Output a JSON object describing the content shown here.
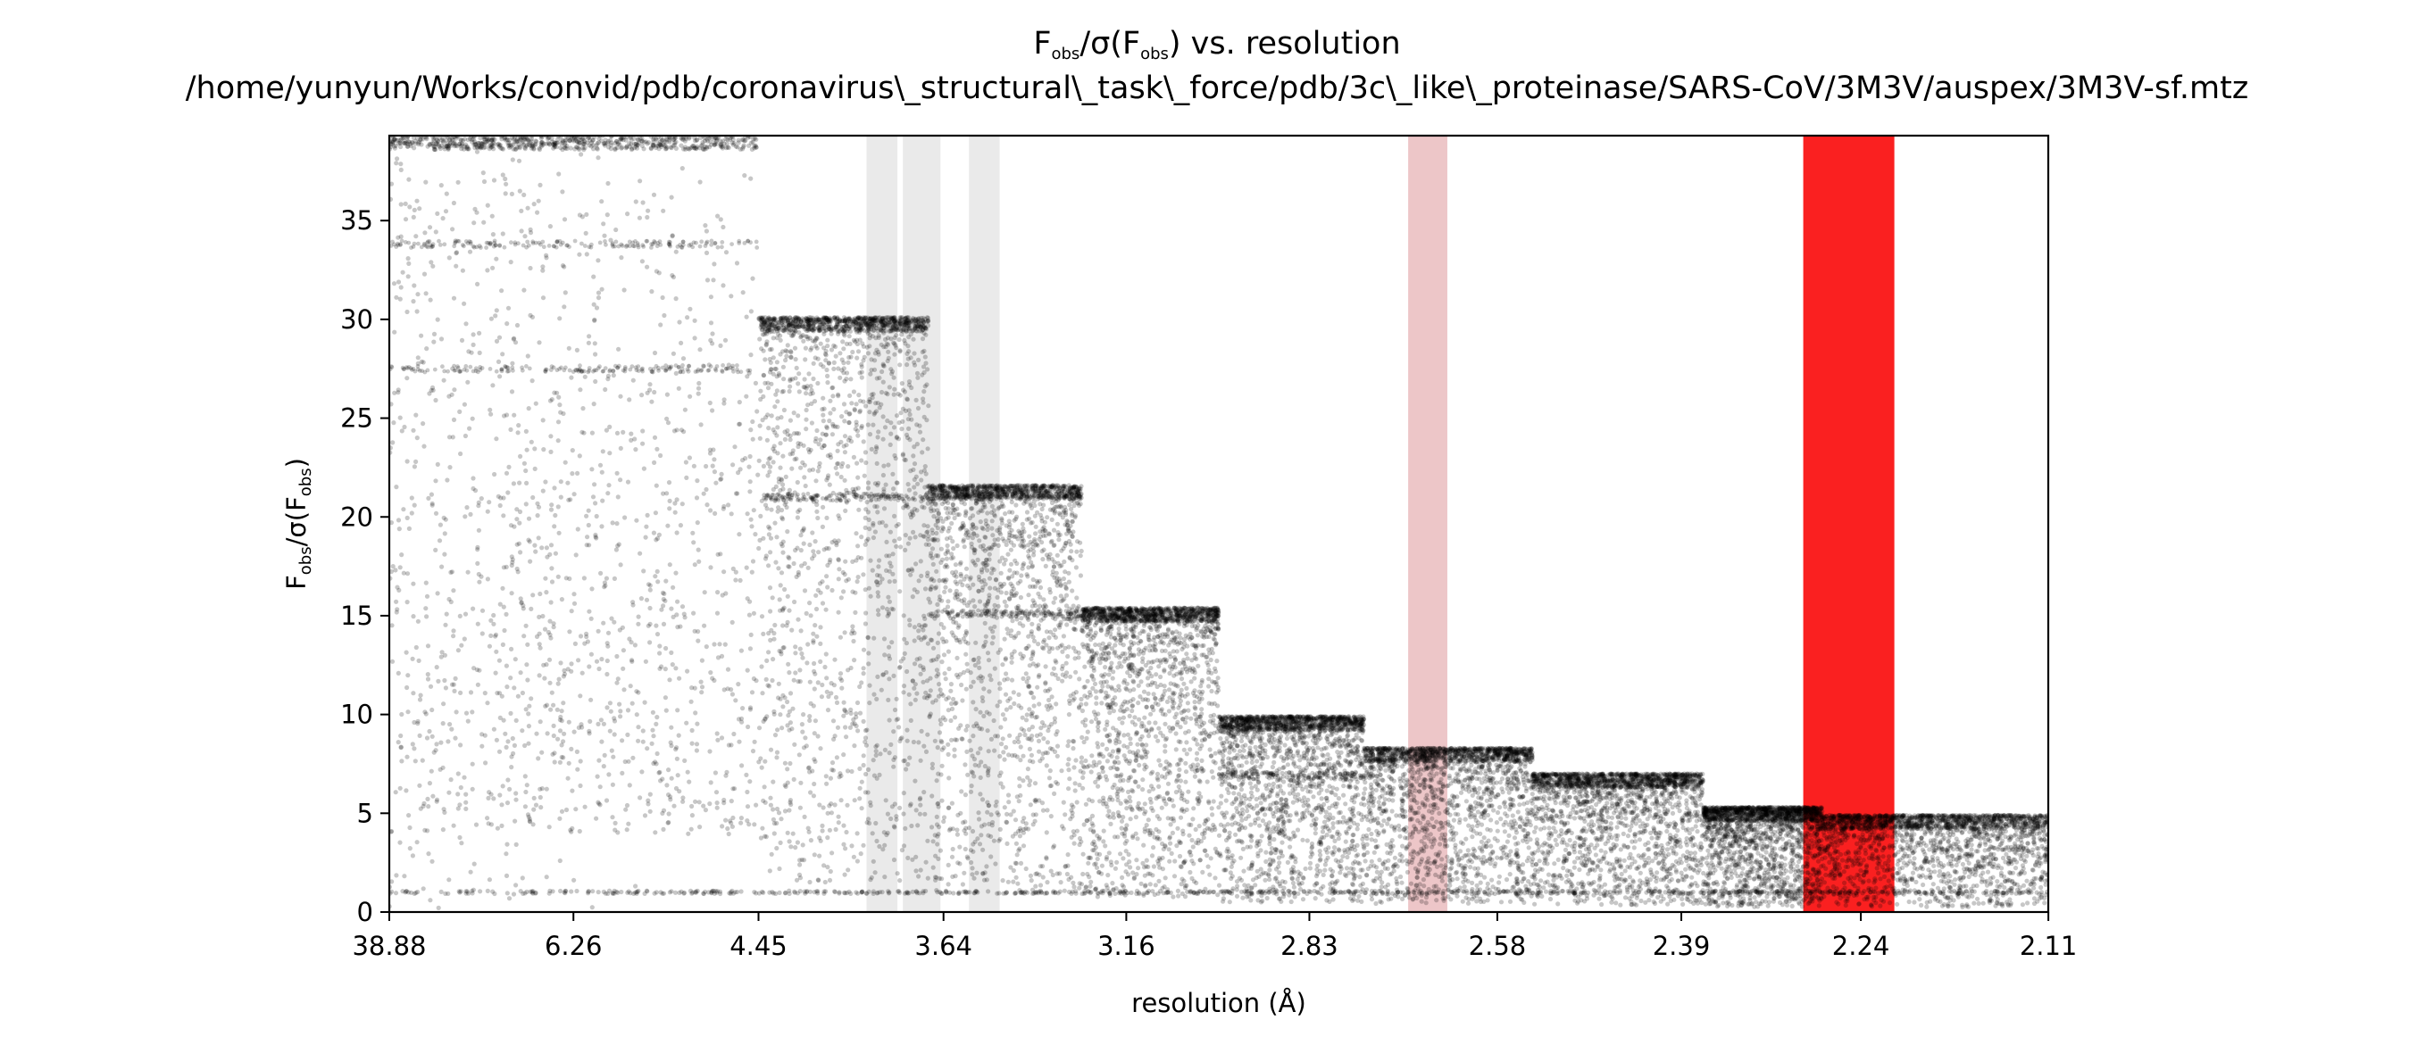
{
  "chart_data": {
    "type": "scatter",
    "title": "Fobs/σ(Fobs) vs. resolution",
    "title_parts": {
      "main": "F",
      "sub": "obs",
      "mid": "/σ(F",
      "sub2": "obs",
      "end": ") vs. resolution"
    },
    "subtitle": "/home/yunyun/Works/convid/pdb/coronavirus\\_structural\\_task\\_force/pdb/3c\\_like\\_proteinase/SARS-CoV/3M3V/auspex/3M3V-sf.mtz",
    "xlabel": "resolution (Å)",
    "ylabel": "Fobs/σ(Fobs)",
    "ylabel_parts": {
      "main": "F",
      "sub": "obs",
      "mid": "/σ(F",
      "sub2": "obs",
      "end": ")"
    },
    "x_tick_labels": [
      "38.88",
      "6.26",
      "4.45",
      "3.64",
      "3.16",
      "2.83",
      "2.58",
      "2.39",
      "2.24",
      "2.11"
    ],
    "x_axis_note": "x axis is linear in 1/d² (Å⁻²); tick labels show resolution d in Å",
    "x_range_inv_d2": [
      0.000662,
      0.2246
    ],
    "y_ticks": [
      0,
      5,
      10,
      15,
      20,
      25,
      30,
      35
    ],
    "ylim": [
      0,
      39.3
    ],
    "grid": false,
    "point_color": "#000000",
    "point_alpha": 0.22,
    "max_ceilings": [
      {
        "res_range": [
          38.88,
          4.45
        ],
        "max": 39.3
      },
      {
        "res_range": [
          4.45,
          3.69
        ],
        "max": 30.1
      },
      {
        "res_range": [
          3.69,
          3.26
        ],
        "max": 21.6
      },
      {
        "res_range": [
          3.26,
          2.98
        ],
        "max": 15.4
      },
      {
        "res_range": [
          2.98,
          2.75
        ],
        "max": 9.9
      },
      {
        "res_range": [
          2.75,
          2.54
        ],
        "max": 8.3
      },
      {
        "res_range": [
          2.54,
          2.37
        ],
        "max": 7.0
      },
      {
        "res_range": [
          2.37,
          2.27
        ],
        "max": 5.3
      },
      {
        "res_range": [
          2.27,
          2.11
        ],
        "max": 4.9
      }
    ],
    "floor_value": 1.0,
    "horizontal_streaks": [
      {
        "res_range": [
          38.88,
          4.45
        ],
        "value": 33.8
      },
      {
        "res_range": [
          38.88,
          4.45
        ],
        "value": 27.5
      },
      {
        "res_range": [
          4.45,
          3.69
        ],
        "value": 21.0
      },
      {
        "res_range": [
          3.69,
          3.26
        ],
        "value": 15.1
      },
      {
        "res_range": [
          2.98,
          2.75
        ],
        "value": 6.9
      }
    ],
    "highlight_bands": [
      {
        "res_range": [
          3.92,
          3.8
        ],
        "color": "#d9d9d9",
        "alpha": 0.55
      },
      {
        "res_range": [
          3.78,
          3.65
        ],
        "color": "#d9d9d9",
        "alpha": 0.55
      },
      {
        "res_range": [
          3.56,
          3.47
        ],
        "color": "#d9d9d9",
        "alpha": 0.55
      },
      {
        "res_range": [
          2.69,
          2.64
        ],
        "color": "#e4a8aa",
        "alpha": 0.65
      },
      {
        "res_range": [
          2.285,
          2.215
        ],
        "color": "#fa2020",
        "alpha": 1.0
      }
    ]
  }
}
